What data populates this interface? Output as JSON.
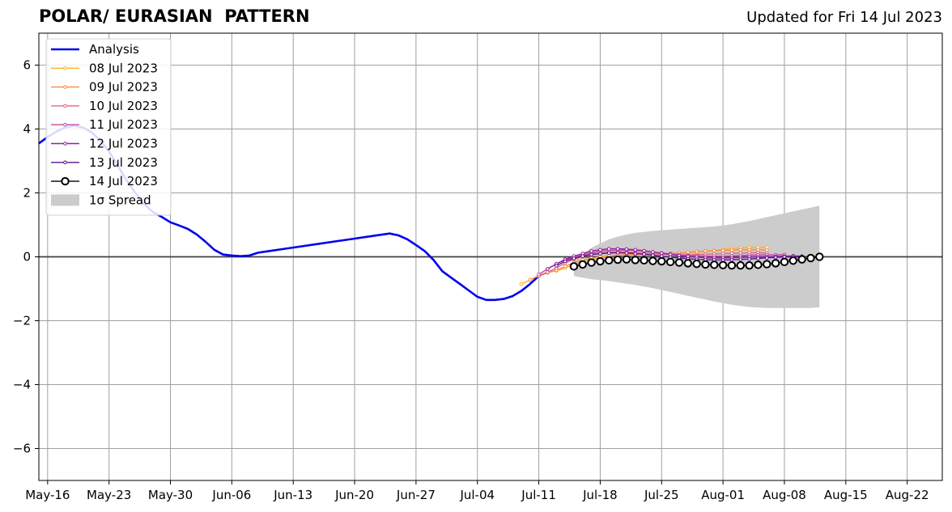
{
  "header": {
    "title": "POLAR/ EURASIAN  PATTERN",
    "updated": "Updated for Fri 14 Jul 2023"
  },
  "chart_data": {
    "type": "line",
    "title": "POLAR/ EURASIAN  PATTERN",
    "subtitle": "Updated for Fri 14 Jul 2023",
    "xlabel": "",
    "ylabel": "",
    "xlim": [
      "2023-05-15",
      "2023-08-26"
    ],
    "ylim": [
      -7,
      7
    ],
    "grid": true,
    "legend_position": "top-left",
    "x_ticks": [
      "2023-05-16",
      "2023-05-23",
      "2023-05-30",
      "2023-06-06",
      "2023-06-13",
      "2023-06-20",
      "2023-06-27",
      "2023-07-04",
      "2023-07-11",
      "2023-07-18",
      "2023-07-25",
      "2023-08-01",
      "2023-08-08",
      "2023-08-15",
      "2023-08-22"
    ],
    "x_tick_labels": [
      "May-16",
      "May-23",
      "May-30",
      "Jun-06",
      "Jun-13",
      "Jun-20",
      "Jun-27",
      "Jul-04",
      "Jul-11",
      "Jul-18",
      "Jul-25",
      "Aug-01",
      "Aug-08",
      "Aug-15",
      "Aug-22"
    ],
    "y_ticks": [
      -6,
      -4,
      -2,
      0,
      2,
      4,
      6
    ],
    "y_tick_labels": [
      "−6",
      "−4",
      "−2",
      "0",
      "2",
      "4",
      "6"
    ],
    "analysis": {
      "name": "Analysis",
      "color": "#0000ee",
      "points": [
        [
          "2023-05-15",
          3.55
        ],
        [
          "2023-05-16",
          3.75
        ],
        [
          "2023-05-17",
          3.92
        ],
        [
          "2023-05-18",
          4.05
        ],
        [
          "2023-05-19",
          4.1
        ],
        [
          "2023-05-20",
          4.05
        ],
        [
          "2023-05-21",
          3.9
        ],
        [
          "2023-05-22",
          3.65
        ],
        [
          "2023-05-23",
          3.3
        ],
        [
          "2023-05-24",
          2.85
        ],
        [
          "2023-05-25",
          2.4
        ],
        [
          "2023-05-26",
          2.0
        ],
        [
          "2023-05-27",
          1.65
        ],
        [
          "2023-05-28",
          1.4
        ],
        [
          "2023-05-29",
          1.25
        ],
        [
          "2023-05-30",
          1.08
        ],
        [
          "2023-05-31",
          0.98
        ],
        [
          "2023-06-01",
          0.87
        ],
        [
          "2023-06-02",
          0.7
        ],
        [
          "2023-06-03",
          0.47
        ],
        [
          "2023-06-04",
          0.22
        ],
        [
          "2023-06-05",
          0.07
        ],
        [
          "2023-06-06",
          0.04
        ],
        [
          "2023-06-07",
          0.02
        ],
        [
          "2023-06-08",
          0.04
        ],
        [
          "2023-06-09",
          0.13
        ],
        [
          "2023-06-10",
          0.17
        ],
        [
          "2023-06-12",
          0.25
        ],
        [
          "2023-06-14",
          0.33
        ],
        [
          "2023-06-16",
          0.41
        ],
        [
          "2023-06-18",
          0.49
        ],
        [
          "2023-06-20",
          0.57
        ],
        [
          "2023-06-22",
          0.65
        ],
        [
          "2023-06-24",
          0.73
        ],
        [
          "2023-06-25",
          0.67
        ],
        [
          "2023-06-26",
          0.55
        ],
        [
          "2023-06-27",
          0.37
        ],
        [
          "2023-06-28",
          0.18
        ],
        [
          "2023-06-29",
          -0.1
        ],
        [
          "2023-06-30",
          -0.45
        ],
        [
          "2023-07-01",
          -0.65
        ],
        [
          "2023-07-02",
          -0.85
        ],
        [
          "2023-07-03",
          -1.05
        ],
        [
          "2023-07-04",
          -1.25
        ],
        [
          "2023-07-05",
          -1.35
        ],
        [
          "2023-07-06",
          -1.35
        ],
        [
          "2023-07-07",
          -1.32
        ],
        [
          "2023-07-08",
          -1.23
        ],
        [
          "2023-07-09",
          -1.07
        ],
        [
          "2023-07-10",
          -0.85
        ],
        [
          "2023-07-11",
          -0.6
        ]
      ]
    },
    "forecasts": [
      {
        "name": "08 Jul 2023",
        "color": "#ffb02a",
        "start": "2023-07-09",
        "values": [
          -0.85,
          -0.73,
          -0.58,
          -0.48,
          -0.44,
          -0.35,
          -0.25,
          -0.15,
          -0.08,
          -0.02,
          0.02,
          0.05,
          0.06,
          0.07,
          0.08,
          0.08,
          0.09,
          0.1,
          0.11,
          0.13,
          0.15,
          0.17,
          0.2,
          0.23,
          0.26,
          0.28,
          0.29,
          0.3,
          0.29
        ]
      },
      {
        "name": "09 Jul 2023",
        "color": "#f48a4a",
        "start": "2023-07-10",
        "values": [
          -0.72,
          -0.6,
          -0.5,
          -0.42,
          -0.3,
          -0.18,
          -0.1,
          -0.04,
          0.0,
          0.03,
          0.05,
          0.06,
          0.07,
          0.08,
          0.09,
          0.1,
          0.11,
          0.12,
          0.14,
          0.16,
          0.18,
          0.19,
          0.2,
          0.21,
          0.22,
          0.22,
          0.22,
          0.21
        ]
      },
      {
        "name": "10 Jul 2023",
        "color": "#e0677a",
        "start": "2023-07-11",
        "values": [
          -0.6,
          -0.48,
          -0.35,
          -0.2,
          -0.08,
          0.02,
          0.08,
          0.12,
          0.15,
          0.16,
          0.15,
          0.14,
          0.12,
          0.1,
          0.08,
          0.07,
          0.06,
          0.06,
          0.07,
          0.08,
          0.09,
          0.1,
          0.11,
          0.12,
          0.13,
          0.13,
          0.12
        ]
      },
      {
        "name": "11 Jul 2023",
        "color": "#c04aa0",
        "start": "2023-07-11",
        "values": [
          -0.55,
          -0.38,
          -0.22,
          -0.1,
          -0.02,
          0.06,
          0.12,
          0.18,
          0.2,
          0.21,
          0.21,
          0.2,
          0.18,
          0.15,
          0.12,
          0.09,
          0.06,
          0.04,
          0.03,
          0.02,
          0.02,
          0.02,
          0.03,
          0.04,
          0.05,
          0.06,
          0.06,
          0.06,
          0.07
        ]
      },
      {
        "name": "12 Jul 2023",
        "color": "#9420a8",
        "start": "2023-07-12",
        "values": [
          -0.38,
          -0.22,
          -0.08,
          0.02,
          0.1,
          0.18,
          0.22,
          0.25,
          0.25,
          0.24,
          0.22,
          0.19,
          0.15,
          0.11,
          0.07,
          0.04,
          0.01,
          -0.01,
          -0.03,
          -0.04,
          -0.04,
          -0.03,
          -0.02,
          -0.01,
          0.0,
          0.0,
          0.01,
          0.02,
          0.03,
          0.02
        ]
      },
      {
        "name": "13 Jul 2023",
        "color": "#5a138e",
        "start": "2023-07-13",
        "values": [
          -0.28,
          -0.14,
          -0.05,
          0.02,
          0.07,
          0.1,
          0.12,
          0.13,
          0.12,
          0.1,
          0.08,
          0.05,
          0.02,
          -0.01,
          -0.04,
          -0.06,
          -0.08,
          -0.09,
          -0.1,
          -0.1,
          -0.09,
          -0.08,
          -0.07,
          -0.05,
          -0.03,
          -0.02,
          0.0,
          0.0,
          0.01
        ]
      }
    ],
    "latest": {
      "name": "14 Jul 2023",
      "color": "#000000",
      "start": "2023-07-15",
      "values": [
        -0.3,
        -0.24,
        -0.18,
        -0.14,
        -0.11,
        -0.09,
        -0.08,
        -0.1,
        -0.11,
        -0.13,
        -0.14,
        -0.16,
        -0.18,
        -0.2,
        -0.22,
        -0.24,
        -0.25,
        -0.26,
        -0.27,
        -0.27,
        -0.27,
        -0.25,
        -0.23,
        -0.2,
        -0.16,
        -0.12,
        -0.08,
        -0.04,
        0.0
      ]
    },
    "spread": {
      "name": "1σ Spread",
      "color": "#cccccc",
      "start": "2023-07-15",
      "upper": [
        -0.05,
        0.1,
        0.28,
        0.42,
        0.55,
        0.63,
        0.7,
        0.75,
        0.78,
        0.81,
        0.83,
        0.85,
        0.87,
        0.89,
        0.91,
        0.93,
        0.95,
        0.98,
        1.02,
        1.07,
        1.12,
        1.18,
        1.24,
        1.3,
        1.36,
        1.42,
        1.48,
        1.54,
        1.6
      ],
      "lower": [
        -0.6,
        -0.65,
        -0.7,
        -0.73,
        -0.76,
        -0.8,
        -0.84,
        -0.88,
        -0.93,
        -0.98,
        -1.04,
        -1.1,
        -1.16,
        -1.22,
        -1.28,
        -1.34,
        -1.4,
        -1.45,
        -1.5,
        -1.54,
        -1.57,
        -1.59,
        -1.6,
        -1.6,
        -1.6,
        -1.6,
        -1.6,
        -1.6,
        -1.58
      ]
    }
  }
}
